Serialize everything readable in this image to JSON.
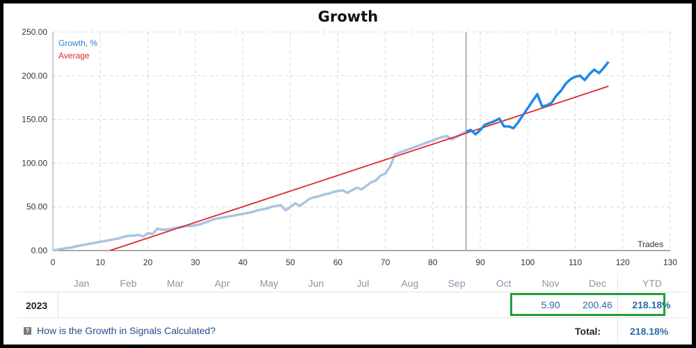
{
  "chart_data": {
    "type": "line",
    "title": "Growth",
    "xlabel": "Trades",
    "ylabel": "",
    "xlim": [
      0,
      130
    ],
    "ylim": [
      0,
      250
    ],
    "x_ticks": [
      "0",
      "10",
      "20",
      "30",
      "40",
      "50",
      "60",
      "70",
      "80",
      "90",
      "100",
      "110",
      "120",
      "130"
    ],
    "y_ticks": [
      "0.00",
      "50.00",
      "100.00",
      "150.00",
      "200.00",
      "250.00"
    ],
    "grid": true,
    "legend_position": "top-left",
    "series": [
      {
        "name": "Growth, %",
        "color_past": "#a9c4e2",
        "color_current": "#1f86e8",
        "split_x": 87,
        "x": [
          0,
          1,
          2,
          3,
          4,
          5,
          6,
          7,
          8,
          9,
          10,
          11,
          12,
          13,
          14,
          15,
          16,
          17,
          18,
          19,
          20,
          21,
          22,
          23,
          24,
          25,
          26,
          27,
          28,
          29,
          30,
          31,
          32,
          33,
          34,
          35,
          36,
          37,
          38,
          39,
          40,
          41,
          42,
          43,
          44,
          45,
          46,
          47,
          48,
          49,
          50,
          51,
          52,
          53,
          54,
          55,
          56,
          57,
          58,
          59,
          60,
          61,
          62,
          63,
          64,
          65,
          66,
          67,
          68,
          69,
          70,
          71,
          72,
          73,
          74,
          75,
          76,
          77,
          78,
          79,
          80,
          81,
          82,
          83,
          84,
          85,
          86,
          87,
          88,
          89,
          90,
          91,
          92,
          93,
          94,
          95,
          96,
          97,
          98,
          99,
          100,
          101,
          102,
          103,
          104,
          105,
          106,
          107,
          108,
          109,
          110,
          111,
          112,
          113,
          114,
          115,
          116,
          117
        ],
        "values": [
          0,
          1,
          2,
          3,
          3.5,
          5,
          6,
          7,
          8,
          9,
          10,
          11,
          12,
          13,
          14,
          16,
          17,
          17,
          18,
          16,
          20,
          19,
          25,
          24,
          24,
          25,
          26,
          27,
          28,
          28,
          29,
          30,
          32,
          34,
          36,
          37,
          38,
          39,
          40,
          41,
          42,
          43,
          44,
          46,
          47,
          48,
          50,
          51,
          52,
          46,
          50,
          54,
          51,
          55,
          59,
          61,
          62,
          64,
          65,
          67,
          68,
          69,
          66,
          69,
          72,
          70,
          74,
          78,
          80,
          86,
          88,
          96,
          110,
          112,
          114,
          116,
          118,
          120,
          122,
          124,
          126,
          128,
          130,
          131,
          127,
          130,
          133,
          136,
          138,
          133,
          138,
          144,
          146,
          148,
          151,
          142,
          142,
          140,
          147,
          155,
          163,
          171,
          179,
          165,
          166,
          169,
          177,
          183,
          191,
          196,
          199,
          200,
          195,
          202,
          207,
          203,
          209,
          216
        ]
      },
      {
        "name": "Average",
        "color": "#e0252a",
        "x": [
          12,
          117
        ],
        "values": [
          0,
          188
        ]
      }
    ],
    "vertical_marker_x": 87
  },
  "table": {
    "months": [
      "Jan",
      "Feb",
      "Mar",
      "Apr",
      "May",
      "Jun",
      "Jul",
      "Aug",
      "Sep",
      "Oct",
      "Nov",
      "Dec"
    ],
    "ytd_label": "YTD",
    "year": "2023",
    "row_values": [
      "",
      "",
      "",
      "",
      "",
      "",
      "",
      "",
      "",
      "",
      "5.90",
      "200.46"
    ],
    "ytd_value": "218.18%",
    "total_label": "Total:",
    "total_value": "218.18%",
    "info_link": "How is the Growth in Signals Calculated?"
  },
  "colors": {
    "grid": "#d9d9d9",
    "highlight_box": "#1f9d3a",
    "legend_growth": "#2f7fd0",
    "legend_average": "#e0252a"
  }
}
